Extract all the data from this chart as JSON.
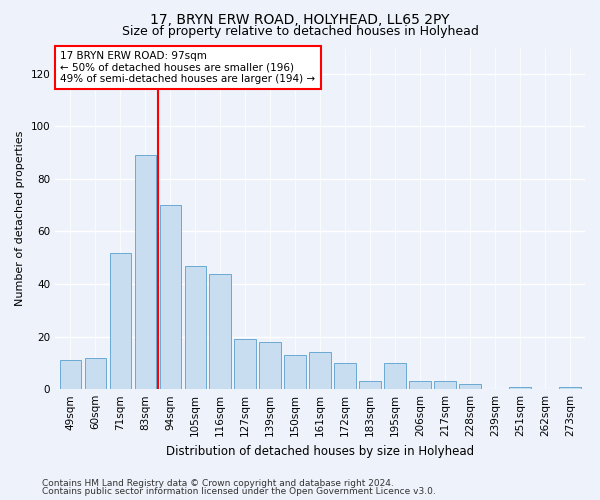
{
  "title1": "17, BRYN ERW ROAD, HOLYHEAD, LL65 2PY",
  "title2": "Size of property relative to detached houses in Holyhead",
  "xlabel": "Distribution of detached houses by size in Holyhead",
  "ylabel": "Number of detached properties",
  "categories": [
    "49sqm",
    "60sqm",
    "71sqm",
    "83sqm",
    "94sqm",
    "105sqm",
    "116sqm",
    "127sqm",
    "139sqm",
    "150sqm",
    "161sqm",
    "172sqm",
    "183sqm",
    "195sqm",
    "206sqm",
    "217sqm",
    "228sqm",
    "239sqm",
    "251sqm",
    "262sqm",
    "273sqm"
  ],
  "values": [
    11,
    12,
    52,
    89,
    70,
    47,
    44,
    19,
    18,
    13,
    14,
    10,
    3,
    10,
    3,
    3,
    2,
    0,
    1,
    0,
    1
  ],
  "bar_color": "#c9ddf0",
  "bar_edge_color": "#6aaad4",
  "annotation_text": "17 BRYN ERW ROAD: 97sqm\n← 50% of detached houses are smaller (196)\n49% of semi-detached houses are larger (194) →",
  "annotation_box_color": "white",
  "annotation_box_edge_color": "red",
  "reference_line_color": "red",
  "ylim": [
    0,
    130
  ],
  "yticks": [
    0,
    20,
    40,
    60,
    80,
    100,
    120
  ],
  "footer1": "Contains HM Land Registry data © Crown copyright and database right 2024.",
  "footer2": "Contains public sector information licensed under the Open Government Licence v3.0.",
  "bg_color": "#eef2fa",
  "grid_color": "white",
  "title1_fontsize": 10,
  "title2_fontsize": 9,
  "xlabel_fontsize": 8.5,
  "ylabel_fontsize": 8,
  "tick_fontsize": 7.5,
  "annotation_fontsize": 7.5,
  "footer_fontsize": 6.5
}
